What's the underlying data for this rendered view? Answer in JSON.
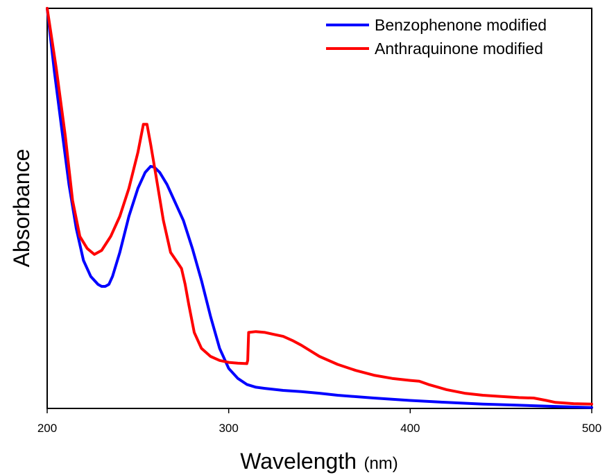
{
  "chart_data": {
    "type": "line",
    "title": "",
    "xlabel": "Wavelength",
    "xlabel_unit": "(nm)",
    "ylabel": "Absorbance",
    "xlim": [
      200,
      500
    ],
    "ylim": [
      0,
      1.0
    ],
    "x_ticks": [
      200,
      300,
      400,
      500
    ],
    "y_ticks_shown": false,
    "grid": false,
    "legend_position": "top-right",
    "series": [
      {
        "name": "Benzophenone modified",
        "color": "#0000ff",
        "points": [
          [
            200,
            1.0
          ],
          [
            204,
            0.84
          ],
          [
            208,
            0.7
          ],
          [
            212,
            0.56
          ],
          [
            216,
            0.45
          ],
          [
            220,
            0.37
          ],
          [
            224,
            0.33
          ],
          [
            228,
            0.31
          ],
          [
            230,
            0.305
          ],
          [
            232,
            0.305
          ],
          [
            234,
            0.31
          ],
          [
            236,
            0.33
          ],
          [
            240,
            0.39
          ],
          [
            245,
            0.48
          ],
          [
            250,
            0.55
          ],
          [
            254,
            0.59
          ],
          [
            257,
            0.605
          ],
          [
            259,
            0.603
          ],
          [
            262,
            0.59
          ],
          [
            266,
            0.56
          ],
          [
            270,
            0.52
          ],
          [
            275,
            0.47
          ],
          [
            280,
            0.4
          ],
          [
            285,
            0.32
          ],
          [
            290,
            0.23
          ],
          [
            295,
            0.15
          ],
          [
            300,
            0.1
          ],
          [
            305,
            0.075
          ],
          [
            310,
            0.06
          ],
          [
            315,
            0.053
          ],
          [
            320,
            0.05
          ],
          [
            330,
            0.045
          ],
          [
            340,
            0.042
          ],
          [
            350,
            0.038
          ],
          [
            360,
            0.033
          ],
          [
            380,
            0.026
          ],
          [
            400,
            0.02
          ],
          [
            420,
            0.015
          ],
          [
            440,
            0.011
          ],
          [
            460,
            0.008
          ],
          [
            480,
            0.005
          ],
          [
            500,
            0.002
          ]
        ]
      },
      {
        "name": "Anthraquinone modified",
        "color": "#ff0000",
        "points": [
          [
            200,
            1.0
          ],
          [
            205,
            0.85
          ],
          [
            210,
            0.68
          ],
          [
            214,
            0.52
          ],
          [
            218,
            0.43
          ],
          [
            222,
            0.4
          ],
          [
            226,
            0.385
          ],
          [
            230,
            0.395
          ],
          [
            235,
            0.43
          ],
          [
            240,
            0.48
          ],
          [
            245,
            0.55
          ],
          [
            250,
            0.64
          ],
          [
            253,
            0.71
          ],
          [
            255,
            0.71
          ],
          [
            257,
            0.66
          ],
          [
            260,
            0.58
          ],
          [
            264,
            0.47
          ],
          [
            268,
            0.39
          ],
          [
            271,
            0.37
          ],
          [
            274,
            0.35
          ],
          [
            276,
            0.31
          ],
          [
            278,
            0.26
          ],
          [
            281,
            0.19
          ],
          [
            285,
            0.15
          ],
          [
            290,
            0.13
          ],
          [
            295,
            0.12
          ],
          [
            300,
            0.115
          ],
          [
            305,
            0.113
          ],
          [
            310,
            0.112
          ],
          [
            310.5,
            0.12
          ],
          [
            311,
            0.19
          ],
          [
            315,
            0.192
          ],
          [
            320,
            0.19
          ],
          [
            325,
            0.185
          ],
          [
            330,
            0.18
          ],
          [
            335,
            0.17
          ],
          [
            340,
            0.158
          ],
          [
            350,
            0.13
          ],
          [
            360,
            0.11
          ],
          [
            370,
            0.095
          ],
          [
            380,
            0.083
          ],
          [
            390,
            0.075
          ],
          [
            400,
            0.07
          ],
          [
            405,
            0.068
          ],
          [
            410,
            0.06
          ],
          [
            420,
            0.047
          ],
          [
            430,
            0.038
          ],
          [
            440,
            0.033
          ],
          [
            450,
            0.03
          ],
          [
            460,
            0.027
          ],
          [
            468,
            0.026
          ],
          [
            475,
            0.02
          ],
          [
            480,
            0.015
          ],
          [
            490,
            0.012
          ],
          [
            500,
            0.011
          ]
        ]
      }
    ]
  }
}
